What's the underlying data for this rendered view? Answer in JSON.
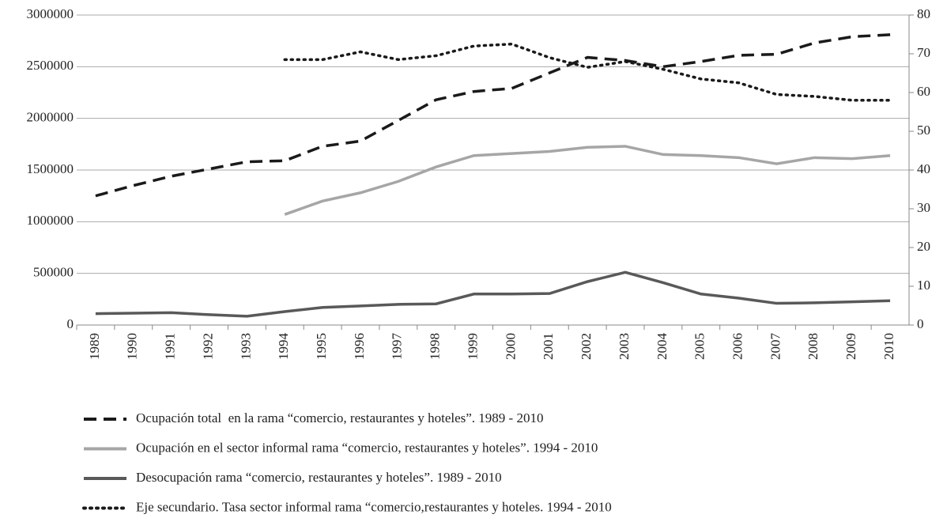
{
  "chart_data": {
    "type": "line",
    "categories": [
      "1989",
      "1990",
      "1991",
      "1992",
      "1993",
      "1994",
      "1995",
      "1996",
      "1997",
      "1998",
      "1999",
      "2000",
      "2001",
      "2002",
      "2003",
      "2004",
      "2005",
      "2006",
      "2007",
      "2008",
      "2009",
      "2010"
    ],
    "series": [
      {
        "name": "Ocupación total  en la rama “comercio, restaurantes y hoteles”. 1989 - 2010",
        "color": "#1a1a1a",
        "dash": "dashed",
        "values": [
          1250000,
          1350000,
          1440000,
          1510000,
          1580000,
          1590000,
          1730000,
          1780000,
          1980000,
          2180000,
          2260000,
          2290000,
          2440000,
          2590000,
          2560000,
          2500000,
          2550000,
          2610000,
          2620000,
          2730000,
          2790000,
          2810000
        ]
      },
      {
        "name": "Ocupación en el sector informal rama “comercio, restaurantes y hoteles”. 1994 - 2010",
        "color": "#a6a6a6",
        "dash": "solid",
        "values": [
          null,
          null,
          null,
          null,
          null,
          1070000,
          1200000,
          1280000,
          1390000,
          1530000,
          1640000,
          1660000,
          1680000,
          1720000,
          1730000,
          1650000,
          1640000,
          1620000,
          1560000,
          1620000,
          1610000,
          1640000
        ]
      },
      {
        "name": "Desocupación rama “comercio, restaurantes y hoteles”. 1989 - 2010",
        "color": "#595959",
        "dash": "solid",
        "values": [
          110000,
          115000,
          120000,
          100000,
          85000,
          130000,
          170000,
          185000,
          200000,
          205000,
          300000,
          300000,
          305000,
          420000,
          510000,
          410000,
          300000,
          260000,
          210000,
          215000,
          225000,
          235000
        ]
      },
      {
        "name": "Eje secundario. Tasa sector informal rama “comercio,restaurantes y hoteles. 1994 - 2010",
        "color": "#1a1a1a",
        "dash": "dotted",
        "axis": "y2",
        "values": [
          null,
          null,
          null,
          null,
          null,
          68.5,
          68.5,
          70.5,
          68.5,
          69.5,
          72,
          72.5,
          69,
          66.5,
          68,
          66,
          63.5,
          62.5,
          59.5,
          59,
          58,
          58
        ]
      }
    ],
    "ylim": [
      0,
      3000000
    ],
    "yticks": [
      0,
      500000,
      1000000,
      1500000,
      2000000,
      2500000,
      3000000
    ],
    "y2lim": [
      0,
      80
    ],
    "y2ticks": [
      0,
      10,
      20,
      30,
      40,
      50,
      60,
      70,
      80
    ],
    "grid": true
  }
}
